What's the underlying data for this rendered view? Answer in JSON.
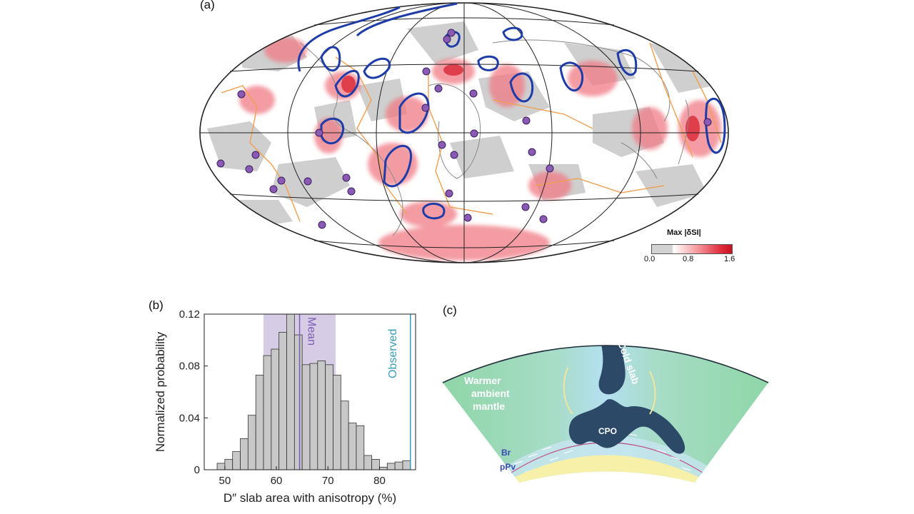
{
  "panels": {
    "a": {
      "label": "(a)",
      "colorbar": {
        "title": "Max |δSI|",
        "ticks": [
          "0.0",
          "0.8",
          "1.6"
        ],
        "colors": [
          "#d2d2d2",
          "#ffffff",
          "#f5a0a4",
          "#e03040",
          "#c8101e"
        ]
      },
      "colors": {
        "ocean": "#ffffff",
        "gray_patch": "#cfcfcf",
        "red_patch": "#f07a84",
        "slab_contour": "#1e3ca8",
        "plate_boundary": "#f0a050",
        "coastline": "#8a8a8a",
        "hotspot": "#8a5ab4"
      }
    },
    "b": {
      "label": "(b)",
      "mean_label": "Mean",
      "observed_label": "Observed",
      "colors": {
        "bar": "#c8c8c8",
        "bar_edge": "#333333",
        "mean_band": "#d6cce6",
        "mean_line": "#7a5eb0",
        "observed": "#3a9cb8"
      }
    },
    "c": {
      "label": "(c)",
      "labels": {
        "warmer": "Warmer",
        "ambient": "ambient",
        "mantle": "mantle",
        "cold_slab": "Cold slab",
        "cpo": "CPO",
        "br": "Br",
        "ppv": "pPv"
      },
      "colors": {
        "mantle": "#8fd6a8",
        "slab_zone": "#a8d8ee",
        "slab": "#2c4a68",
        "core": "#f6f0a8",
        "dprime": "#c8e6f0"
      }
    }
  },
  "chart_data": {
    "type": "bar",
    "xlabel": "D″ slab area with anisotropy (%)",
    "ylabel": "Normalized probability",
    "xlim": [
      46,
      87
    ],
    "ylim": [
      0,
      0.12
    ],
    "xticks": [
      50,
      60,
      70,
      80
    ],
    "yticks": [
      "0",
      "0.04",
      "0.08",
      "0.12"
    ],
    "bin_width": 1.5,
    "bin_starts": [
      48.5,
      50,
      51.5,
      53,
      54.5,
      56,
      57.5,
      59,
      60.5,
      62,
      63.5,
      65,
      66.5,
      68,
      69.5,
      71,
      72.5,
      74,
      75.5,
      77,
      78.5,
      80,
      81.5,
      83,
      84.5
    ],
    "values": [
      0.005,
      0.008,
      0.014,
      0.024,
      0.042,
      0.073,
      0.088,
      0.093,
      0.106,
      0.12,
      0.104,
      0.081,
      0.082,
      0.084,
      0.081,
      0.073,
      0.053,
      0.036,
      0.034,
      0.011,
      0.008,
      0.002,
      0.005,
      0.006,
      0.007
    ],
    "mean": 64.5,
    "mean_band": [
      57.5,
      71.5
    ],
    "observed": 86
  }
}
